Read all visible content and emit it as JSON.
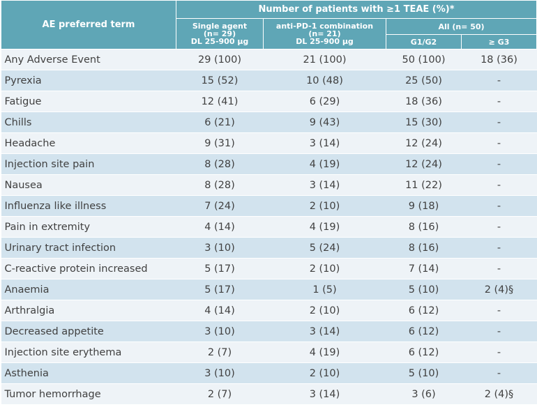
{
  "header": {
    "ae_term": "AE preferred term",
    "title": "Number of patients with ≥1 TEAE (%)*",
    "single": [
      "Single agent",
      "(n= 29)",
      "DL 25-900 µg"
    ],
    "combo": [
      "anti-PD-1 combination",
      "(n= 21)",
      "DL 25-900 µg"
    ],
    "all": "All (n= 50)",
    "g12": "G1/G2",
    "g3": "≥ G3"
  },
  "rows": [
    {
      "term": "Any Adverse Event",
      "single": "29 (100)",
      "combo": "21 (100)",
      "g12": "50 (100)",
      "g3": "18 (36)"
    },
    {
      "term": "Pyrexia",
      "single": "15 (52)",
      "combo": "10 (48)",
      "g12": "25 (50)",
      "g3": "-"
    },
    {
      "term": "Fatigue",
      "single": "12 (41)",
      "combo": "6 (29)",
      "g12": "18 (36)",
      "g3": "-"
    },
    {
      "term": "Chills",
      "single": "6 (21)",
      "combo": "9 (43)",
      "g12": "15 (30)",
      "g3": "-"
    },
    {
      "term": "Headache",
      "single": "9 (31)",
      "combo": "3 (14)",
      "g12": "12 (24)",
      "g3": "-"
    },
    {
      "term": "Injection site pain",
      "single": "8 (28)",
      "combo": "4 (19)",
      "g12": "12 (24)",
      "g3": "-"
    },
    {
      "term": "Nausea",
      "single": "8 (28)",
      "combo": "3 (14)",
      "g12": "11 (22)",
      "g3": "-"
    },
    {
      "term": "Influenza like illness",
      "single": "7 (24)",
      "combo": "2 (10)",
      "g12": "9 (18)",
      "g3": "-"
    },
    {
      "term": "Pain in extremity",
      "single": "4 (14)",
      "combo": "4 (19)",
      "g12": "8 (16)",
      "g3": "-"
    },
    {
      "term": "Urinary tract infection",
      "single": "3 (10)",
      "combo": "5 (24)",
      "g12": "8 (16)",
      "g3": "-"
    },
    {
      "term": "C-reactive protein increased",
      "single": "5 (17)",
      "combo": "2 (10)",
      "g12": "7 (14)",
      "g3": "-"
    },
    {
      "term": "Anaemia",
      "single": "5 (17)",
      "combo": "1 (5)",
      "g12": "5 (10)",
      "g3": "2 (4)§"
    },
    {
      "term": "Arthralgia",
      "single": "4 (14)",
      "combo": "2 (10)",
      "g12": "6 (12)",
      "g3": "-"
    },
    {
      "term": "Decreased appetite",
      "single": "3 (10)",
      "combo": "3 (14)",
      "g12": "6 (12)",
      "g3": "-"
    },
    {
      "term": "Injection site erythema",
      "single": "2 (7)",
      "combo": "4 (19)",
      "g12": "6 (12)",
      "g3": "-"
    },
    {
      "term": "Asthenia",
      "single": "3 (10)",
      "combo": "2 (10)",
      "g12": "5 (10)",
      "g3": "-"
    },
    {
      "term": "Tumor hemorrhage",
      "single": "2 (7)",
      "combo": "3 (14)",
      "g12": "3 (6)",
      "g3": "2 (4)§"
    }
  ]
}
